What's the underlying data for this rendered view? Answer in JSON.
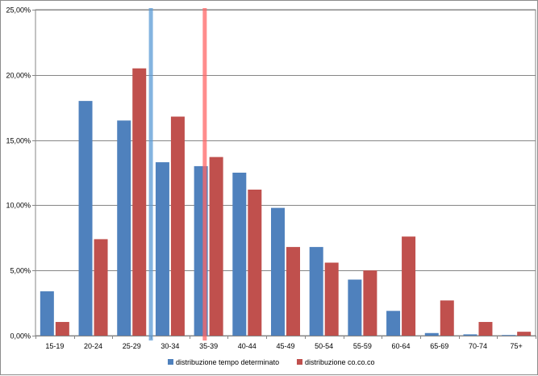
{
  "chart_data": {
    "type": "bar",
    "categories": [
      "15-19",
      "20-24",
      "25-29",
      "30-34",
      "35-39",
      "40-44",
      "45-49",
      "50-54",
      "55-59",
      "60-64",
      "65-69",
      "70-74",
      "75+"
    ],
    "series": [
      {
        "name": "distribuzione tempo determinato",
        "color": "#4f81bd",
        "values": [
          3.4,
          18.0,
          16.5,
          13.3,
          13.0,
          12.5,
          9.8,
          6.8,
          4.3,
          1.9,
          0.2,
          0.1,
          0.05
        ]
      },
      {
        "name": "distribuzione co.co.co",
        "color": "#c0504d",
        "values": [
          1.05,
          7.4,
          20.5,
          16.8,
          13.7,
          11.2,
          6.8,
          5.6,
          5.0,
          7.6,
          2.7,
          1.05,
          0.3
        ]
      }
    ],
    "ylim": [
      0,
      25
    ],
    "ytick_values": [
      0,
      5,
      10,
      15,
      20,
      25
    ],
    "ytick_labels": [
      "0,00%",
      "5,00%",
      "10,00%",
      "15,00%",
      "20,00%",
      "25,00%"
    ],
    "grid": true,
    "legend_position": "bottom",
    "reference_lines": [
      {
        "x_category_index": 3.0,
        "color": "#5b9bd5"
      },
      {
        "x_category_index": 4.4,
        "color": "#ff6666"
      }
    ]
  }
}
